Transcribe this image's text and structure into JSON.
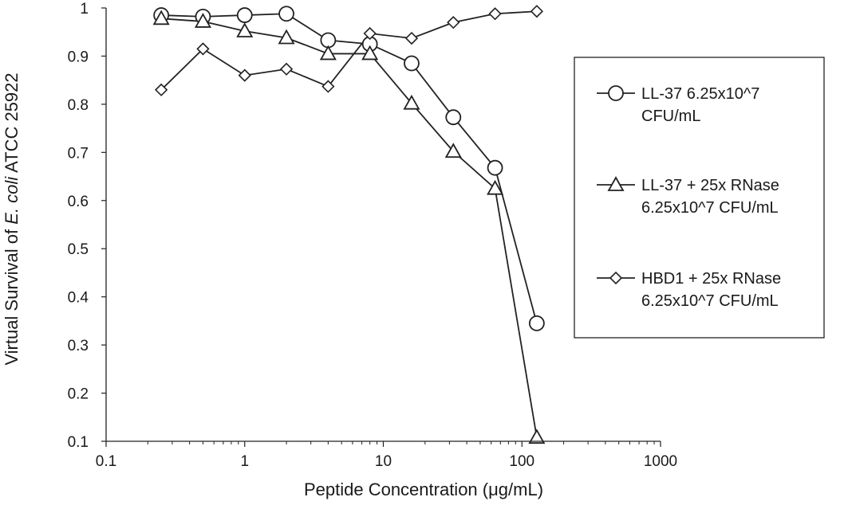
{
  "chart_data": {
    "type": "line",
    "xscale": "log",
    "xlim": [
      0.1,
      1000
    ],
    "ylim": [
      0.1,
      1
    ],
    "xticks": [
      "0.1",
      "1",
      "10",
      "100",
      "1000"
    ],
    "yticks": [
      "0.1",
      "0.2",
      "0.3",
      "0.4",
      "0.5",
      "0.6",
      "0.7",
      "0.8",
      "0.9",
      "1"
    ],
    "xlabel": "Peptide Concentration (μg/mL)",
    "ylabel_parts": [
      "Virtual Survival of ",
      "E. coli",
      " ATCC 25922"
    ],
    "legend_position": "right",
    "grid": false,
    "series": [
      {
        "name_lines": [
          "LL-37 6.25x10^7",
          "CFU/mL"
        ],
        "marker": "circle",
        "x": [
          0.25,
          0.5,
          1,
          2,
          4,
          8,
          16,
          32,
          64,
          128
        ],
        "y": [
          0.985,
          0.982,
          0.985,
          0.988,
          0.933,
          0.925,
          0.885,
          0.773,
          0.668,
          0.345
        ]
      },
      {
        "name_lines": [
          "LL-37 + 25x RNase",
          "6.25x10^7 CFU/mL"
        ],
        "marker": "triangle",
        "x": [
          0.25,
          0.5,
          1,
          2,
          4,
          8,
          16,
          32,
          64,
          128
        ],
        "y": [
          0.978,
          0.972,
          0.952,
          0.938,
          0.905,
          0.905,
          0.802,
          0.702,
          0.625,
          0.108
        ]
      },
      {
        "name_lines": [
          "HBD1 + 25x RNase",
          "6.25x10^7 CFU/mL"
        ],
        "marker": "diamond",
        "x": [
          0.25,
          0.5,
          1,
          2,
          4,
          8,
          16,
          32,
          64,
          128
        ],
        "y": [
          0.83,
          0.915,
          0.86,
          0.873,
          0.837,
          0.947,
          0.937,
          0.97,
          0.988,
          0.993
        ]
      }
    ]
  }
}
